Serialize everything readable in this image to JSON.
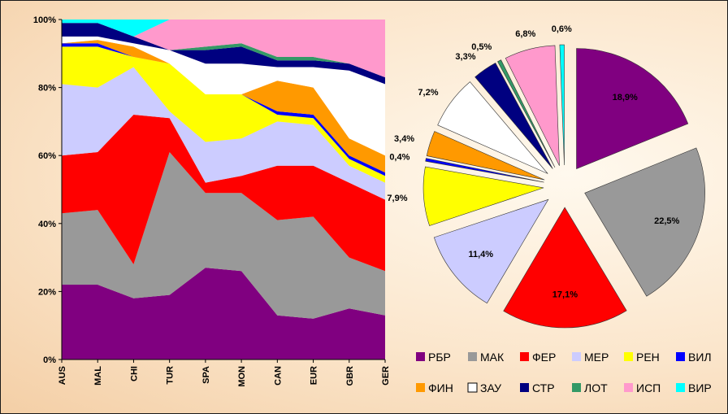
{
  "chart_data": [
    {
      "type": "area",
      "stacked": "percent",
      "categories": [
        "AUS",
        "MAL",
        "CHI",
        "TUR",
        "SPA",
        "MON",
        "CAN",
        "EUR",
        "GBR",
        "GER"
      ],
      "ylim": [
        0,
        100
      ],
      "yticks": [
        "0%",
        "20%",
        "40%",
        "60%",
        "80%",
        "100%"
      ],
      "grid": false,
      "series": [
        {
          "name": "РБР",
          "color": "#800080",
          "values": [
            22,
            22,
            18,
            19,
            27,
            26,
            13,
            12,
            15,
            13
          ]
        },
        {
          "name": "МАК",
          "color": "#999999",
          "values": [
            21,
            22,
            10,
            42,
            22,
            23,
            28,
            30,
            15,
            13
          ]
        },
        {
          "name": "ФЕР",
          "color": "#ff0000",
          "values": [
            17,
            17,
            44,
            10,
            3,
            5,
            16,
            15,
            22,
            21
          ]
        },
        {
          "name": "МЕР",
          "color": "#ccccff",
          "values": [
            21,
            19,
            14,
            2,
            12,
            11,
            13,
            12,
            5,
            5
          ]
        },
        {
          "name": "РЕН",
          "color": "#ffff00",
          "values": [
            11,
            12,
            3,
            14,
            14,
            13,
            2,
            2,
            2,
            2
          ]
        },
        {
          "name": "ВИЛ",
          "color": "#0000ff",
          "values": [
            1,
            1,
            0,
            0,
            0,
            0,
            1,
            1,
            1,
            1
          ]
        },
        {
          "name": "ФИН",
          "color": "#ff9900",
          "values": [
            0,
            1,
            3,
            0,
            0,
            0,
            9,
            8,
            5,
            5
          ]
        },
        {
          "name": "ЗАУ",
          "color": "#ffffff",
          "values": [
            2,
            1,
            1,
            4,
            9,
            9,
            4,
            6,
            20,
            21
          ]
        },
        {
          "name": "СТР",
          "color": "#000080",
          "values": [
            4,
            4,
            2,
            0,
            4,
            5,
            2,
            2,
            2,
            2
          ]
        },
        {
          "name": "ЛОТ",
          "color": "#339966",
          "values": [
            0,
            0,
            0,
            0,
            1,
            1,
            1,
            1,
            0,
            0
          ]
        },
        {
          "name": "ИСП",
          "color": "#ff99cc",
          "values": [
            0,
            0,
            0,
            9,
            8,
            7,
            11,
            11,
            13,
            17
          ]
        },
        {
          "name": "ВИР",
          "color": "#00ffff",
          "values": [
            1,
            1,
            5,
            0,
            0,
            0,
            0,
            0,
            0,
            0
          ]
        }
      ]
    },
    {
      "type": "pie",
      "exploded": true,
      "labels": [
        "РБР",
        "МАК",
        "ФЕР",
        "МЕР",
        "РЕН",
        "ВИЛ",
        "ФИН",
        "ЗАУ",
        "СТР",
        "ЛОТ",
        "ИСП",
        "ВИР"
      ],
      "colors": [
        "#800080",
        "#999999",
        "#ff0000",
        "#ccccff",
        "#ffff00",
        "#0000ff",
        "#ff9900",
        "#ffffff",
        "#000080",
        "#339966",
        "#ff99cc",
        "#00ffff"
      ],
      "values": [
        18.9,
        22.5,
        17.1,
        11.4,
        7.9,
        0.4,
        3.4,
        7.2,
        3.3,
        0.5,
        6.8,
        0.6
      ],
      "value_labels": [
        "18,9%",
        "22,5%",
        "17,1%",
        "11,4%",
        "7,9%",
        "0,4%",
        "3,4%",
        "7,2%",
        "3,3%",
        "0,5%",
        "6,8%",
        "0,6%"
      ]
    }
  ],
  "legend": {
    "placement": "bottom-right",
    "items": [
      {
        "label": "РБР",
        "color": "#800080"
      },
      {
        "label": "МАК",
        "color": "#999999"
      },
      {
        "label": "ФЕР",
        "color": "#ff0000"
      },
      {
        "label": "МЕР",
        "color": "#ccccff"
      },
      {
        "label": "РЕН",
        "color": "#ffff00"
      },
      {
        "label": "ВИЛ",
        "color": "#0000ff"
      },
      {
        "label": "ФИН",
        "color": "#ff9900"
      },
      {
        "label": "ЗАУ",
        "color": "#ffffff"
      },
      {
        "label": "СТР",
        "color": "#000080"
      },
      {
        "label": "ЛОТ",
        "color": "#339966"
      },
      {
        "label": "ИСП",
        "color": "#ff99cc"
      },
      {
        "label": "ВИР",
        "color": "#00ffff"
      }
    ]
  }
}
